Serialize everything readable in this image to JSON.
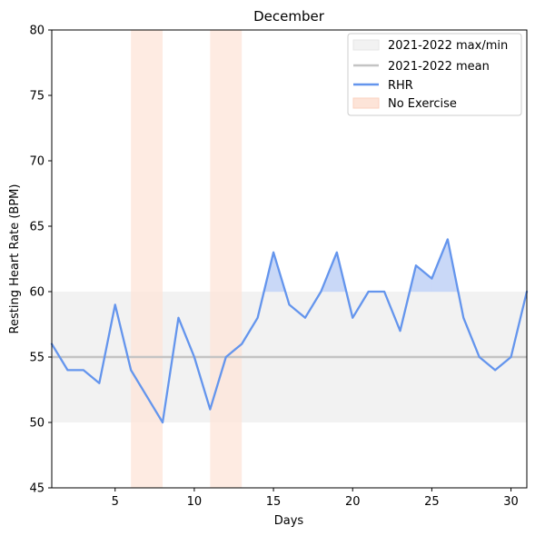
{
  "chart_data": {
    "type": "line",
    "title": "December",
    "xlabel": "Days",
    "ylabel": "Resting Heart Rate (BPM)",
    "xlim": [
      1,
      31
    ],
    "ylim": [
      45,
      80
    ],
    "xticks": [
      5,
      10,
      15,
      20,
      25,
      30
    ],
    "yticks": [
      45,
      50,
      55,
      60,
      65,
      70,
      75,
      80
    ],
    "grid": false,
    "legend_position": "top-right",
    "reference_band": {
      "name": "2021-2022 max/min",
      "min": 50,
      "max": 60,
      "color": "#f2f2f2"
    },
    "reference_line": {
      "name": "2021-2022 mean",
      "value": 55,
      "color": "#c4c4c4"
    },
    "series": [
      {
        "name": "RHR",
        "color": "#6495ed",
        "fill_above_band_color": "#c9d8f7",
        "x": [
          1,
          2,
          3,
          4,
          5,
          6,
          7,
          8,
          9,
          10,
          11,
          12,
          13,
          14,
          15,
          16,
          17,
          18,
          19,
          20,
          21,
          22,
          23,
          24,
          25,
          26,
          27,
          28,
          29,
          30,
          31
        ],
        "values": [
          56,
          54,
          54,
          53,
          59,
          54,
          52,
          50,
          58,
          55,
          51,
          55,
          56,
          58,
          63,
          59,
          58,
          60,
          63,
          58,
          60,
          60,
          57,
          62,
          61,
          64,
          58,
          55,
          54,
          55,
          60
        ]
      }
    ],
    "highlight_ranges": {
      "name": "No Exercise",
      "color": "#fde4d8",
      "ranges": [
        [
          6,
          8
        ],
        [
          11,
          13
        ]
      ]
    }
  }
}
